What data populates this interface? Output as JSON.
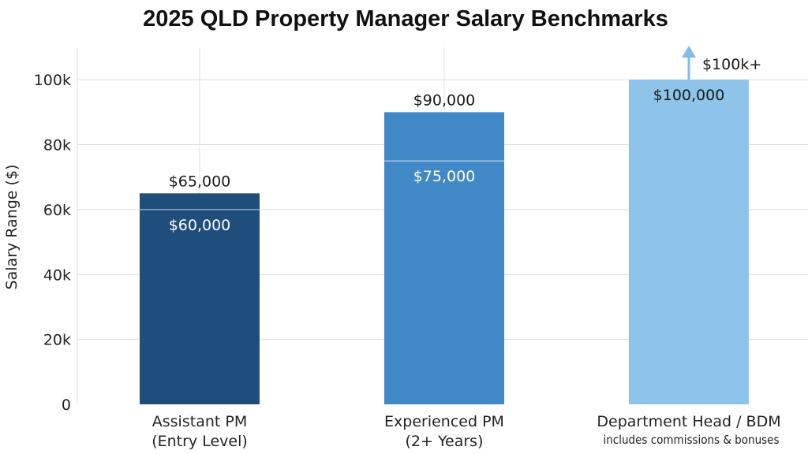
{
  "chart_data": {
    "type": "bar",
    "title": "2025 QLD Property Manager Salary Benchmarks",
    "ylabel": "Salary Range ($)",
    "xlabel": "",
    "ylim": [
      0,
      110000
    ],
    "yticks": [
      {
        "value": 0,
        "label": "0"
      },
      {
        "value": 20000,
        "label": "20k"
      },
      {
        "value": 40000,
        "label": "40k"
      },
      {
        "value": 60000,
        "label": "60k"
      },
      {
        "value": 80000,
        "label": "80k"
      },
      {
        "value": 100000,
        "label": "100k"
      }
    ],
    "grid": true,
    "bars": [
      {
        "line1": "Assistant PM",
        "line2": "(Entry Level)",
        "low": 60000,
        "high": 65000,
        "low_label": "$60,000",
        "high_label": "$65,000",
        "color": "#1f4e7d"
      },
      {
        "line1": "Experienced PM",
        "line2": "(2+ Years)",
        "low": 75000,
        "high": 90000,
        "low_label": "$75,000",
        "high_label": "$90,000",
        "color": "#4188c7"
      },
      {
        "line1": "Department Head / BDM",
        "line2": "includes commissions & bonuses",
        "low": 100000,
        "high": 100000,
        "low_label": "$100,000",
        "high_label": "",
        "arrow_label": "$100k+",
        "color": "#8ec3ea"
      }
    ]
  }
}
